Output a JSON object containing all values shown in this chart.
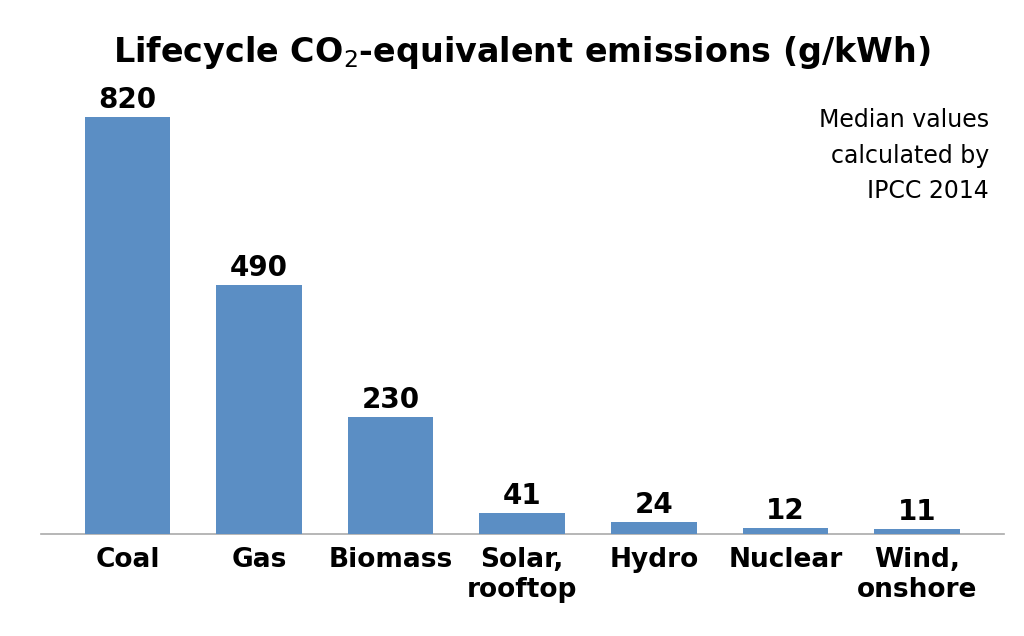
{
  "categories": [
    "Coal",
    "Gas",
    "Biomass",
    "Solar,\nrooftop",
    "Hydro",
    "Nuclear",
    "Wind,\nonshore"
  ],
  "values": [
    820,
    490,
    230,
    41,
    24,
    12,
    11
  ],
  "bar_color": "#5b8ec4",
  "title": "Lifecycle CO$_2$-equivalent emissions (g/kWh)",
  "title_fontsize": 24,
  "bar_label_fontsize": 20,
  "tick_label_fontsize": 19,
  "annotation_text": "Median values\ncalculated by\nIPCC 2014",
  "annotation_fontsize": 17,
  "ylim": [
    0,
    900
  ],
  "background_color": "#ffffff",
  "grid_color": "#d0d0d0",
  "yticks": [
    0,
    100,
    200,
    300,
    400,
    500,
    600,
    700,
    800,
    900
  ]
}
